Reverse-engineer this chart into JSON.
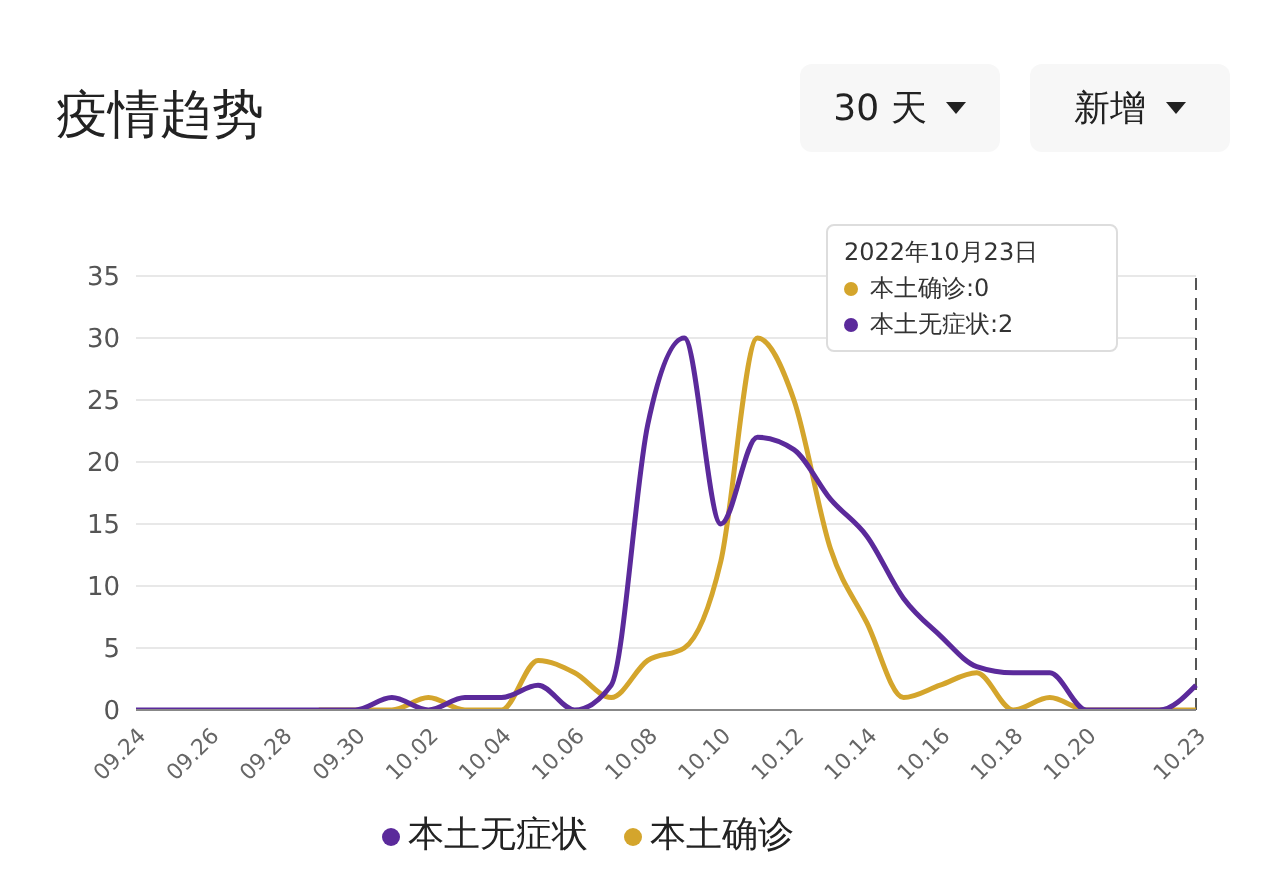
{
  "chart_data": {
    "type": "line",
    "title": "疫情趋势",
    "categories": [
      "09.24",
      null,
      "09.26",
      null,
      "09.28",
      null,
      "09.30",
      null,
      "10.02",
      null,
      "10.04",
      null,
      "10.06",
      null,
      "10.08",
      null,
      "10.10",
      null,
      "10.12",
      null,
      "10.14",
      null,
      "10.16",
      null,
      "10.18",
      null,
      "10.20",
      null,
      null,
      "10.23"
    ],
    "series": [
      {
        "name": "本土确诊",
        "color": "#d4a52c",
        "values": [
          null,
          null,
          null,
          null,
          null,
          0,
          0,
          0,
          1,
          0,
          0,
          4,
          3,
          1,
          4,
          5,
          12,
          30,
          25,
          13,
          7,
          1,
          2,
          3,
          0,
          1,
          0,
          0,
          0,
          0
        ]
      },
      {
        "name": "本土无症状",
        "color": "#5b2a9b",
        "values": [
          0,
          0,
          0,
          0,
          0,
          0,
          0,
          1,
          0,
          1,
          1,
          2,
          0,
          2,
          23,
          30,
          15,
          22,
          21,
          17,
          14,
          9,
          6,
          3.5,
          3,
          3,
          0,
          0,
          0,
          2
        ]
      }
    ],
    "ylim": [
      0,
      35
    ],
    "yticks": [
      0,
      5,
      10,
      15,
      20,
      25,
      30,
      35
    ],
    "grid": "y",
    "legend": "bottom",
    "marker": "none",
    "line_style": "solid",
    "ref_lines": [
      {
        "axis": "x",
        "value": "10.23",
        "line_style": "dashed",
        "color": "#555555"
      }
    ],
    "annotations": [
      "30 天",
      "新增",
      "2022年10月23日",
      "本土确诊:0",
      "本土无症状:2"
    ]
  }
}
